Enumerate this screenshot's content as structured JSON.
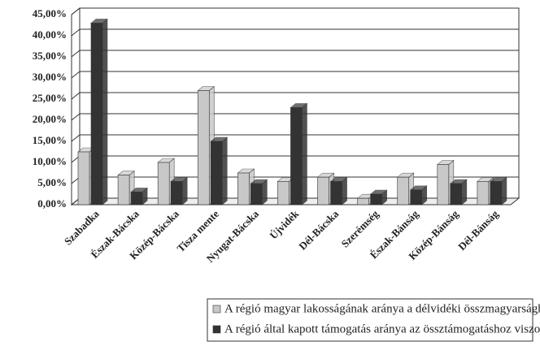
{
  "chart_data": {
    "type": "bar3d",
    "categories": [
      "Szabadka",
      "Észak-Bácska",
      "Közép-Bácska",
      "Tisza mente",
      "Nyugat-Bácska",
      "Újvidék",
      "Dél-Bácska",
      "Szerémség",
      "Észak-Bánság",
      "Közép-Bánság",
      "Dél-Bánság"
    ],
    "series": [
      {
        "name": "A régió magyar lakosságának aránya a délvidéki összmagyarsághoz képest",
        "color": "#c8c8c8",
        "values": [
          12.5,
          7,
          10,
          27,
          7.5,
          5.5,
          6.5,
          1.5,
          6.5,
          9.5,
          5.5
        ]
      },
      {
        "name": "A régió által kapott támogatás aránya az össztámogatáshoz viszonyítva",
        "color": "#333333",
        "values": [
          43,
          3,
          5.5,
          15,
          5,
          23,
          5.5,
          2.5,
          3.5,
          5,
          5.5
        ]
      }
    ],
    "ylim": [
      0,
      45
    ],
    "yticks": [
      {
        "value": 0,
        "label": "0,00%"
      },
      {
        "value": 5,
        "label": "5,00%"
      },
      {
        "value": 10,
        "label": "10,00%"
      },
      {
        "value": 15,
        "label": "15,00%"
      },
      {
        "value": 20,
        "label": "20,00%"
      },
      {
        "value": 25,
        "label": "25,00%"
      },
      {
        "value": 30,
        "label": "30,00%"
      },
      {
        "value": 35,
        "label": "35,00%"
      },
      {
        "value": 40,
        "label": "40,00%"
      },
      {
        "value": 45,
        "label": "45,00%"
      }
    ],
    "grid": true
  }
}
